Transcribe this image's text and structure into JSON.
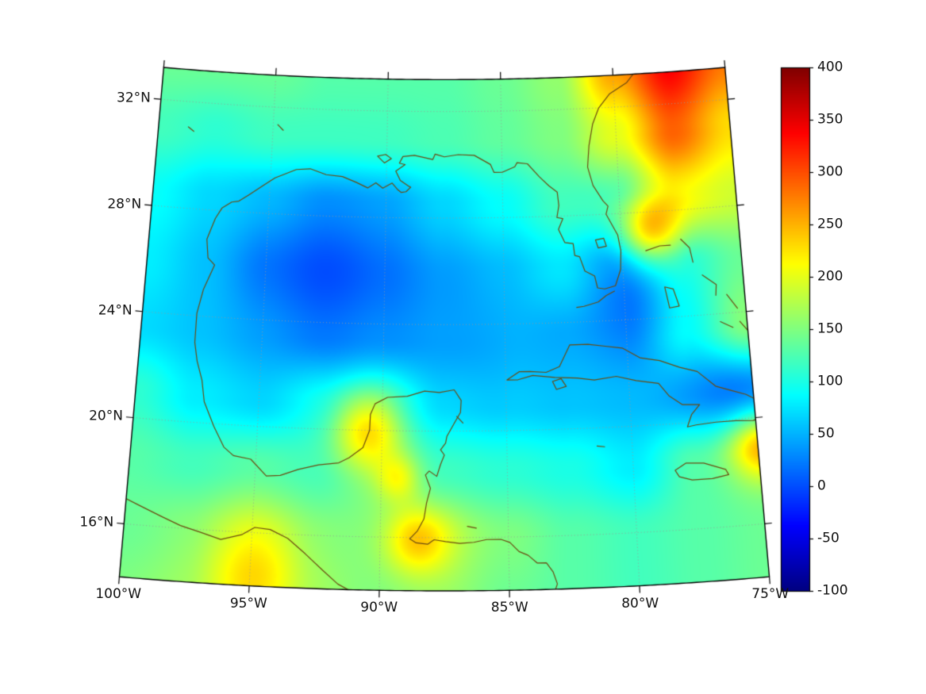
{
  "axes": {
    "lat_labels": [
      "32°N",
      "28°N",
      "24°N",
      "20°N",
      "16°N"
    ],
    "lat_values": [
      32,
      28,
      24,
      20,
      16
    ],
    "lon_labels": [
      "100°W",
      "95°W",
      "90°W",
      "85°W",
      "80°W",
      "75°W"
    ],
    "lon_values": [
      -100,
      -95,
      -90,
      -85,
      -80,
      -75
    ]
  },
  "colorbar": {
    "min": -100,
    "max": 400,
    "colormap": "jet",
    "tick_labels": [
      "400",
      "350",
      "300",
      "250",
      "200",
      "150",
      "100",
      "50",
      "0",
      "-50",
      "-100"
    ],
    "tick_values": [
      400,
      350,
      300,
      250,
      200,
      150,
      100,
      50,
      0,
      -50,
      -100
    ]
  },
  "chart_data": {
    "type": "heatmap",
    "description": "Geographic scalar field over the Gulf of Mexico and Caribbean on a conic map projection with jet colormap, range -100 to 400",
    "projection": {
      "kind": "equidistant-conic",
      "lon0": -87.5,
      "ref_lat": 24,
      "std_parallels": [
        17,
        30
      ],
      "extent_lon": [
        -100,
        -75
      ],
      "extent_lat": [
        14,
        33.2
      ]
    },
    "graticule": {
      "lats": [
        16,
        20,
        24,
        28,
        32
      ],
      "lons": [
        -95,
        -90,
        -85,
        -80
      ]
    },
    "colors": {
      "coastline": "#6b4a10",
      "graticule": "#999999",
      "boundary": "#000000",
      "background": "#ffffff"
    },
    "grid": {
      "lons": [
        -100,
        -97.5,
        -95,
        -92.5,
        -90,
        -87.5,
        -85,
        -82.5,
        -80,
        -77.5,
        -75
      ],
      "lats": [
        13.5,
        16,
        18.5,
        21,
        23.5,
        26,
        28.5,
        31,
        33.5
      ],
      "values": [
        [
          150,
          160,
          190,
          160,
          150,
          160,
          140,
          130,
          120,
          130,
          140
        ],
        [
          140,
          150,
          170,
          150,
          150,
          170,
          150,
          130,
          120,
          130,
          140
        ],
        [
          130,
          120,
          130,
          120,
          150,
          120,
          110,
          100,
          80,
          130,
          150
        ],
        [
          110,
          80,
          70,
          95,
          110,
          80,
          70,
          60,
          55,
          50,
          45
        ],
        [
          70,
          60,
          50,
          40,
          50,
          60,
          60,
          50,
          40,
          100,
          160
        ],
        [
          80,
          60,
          35,
          25,
          35,
          50,
          60,
          80,
          50,
          110,
          140
        ],
        [
          90,
          70,
          60,
          45,
          50,
          70,
          90,
          120,
          120,
          210,
          190
        ],
        [
          120,
          110,
          120,
          120,
          120,
          125,
          135,
          150,
          200,
          290,
          230
        ],
        [
          140,
          140,
          140,
          130,
          130,
          130,
          140,
          160,
          260,
          340,
          280
        ]
      ]
    },
    "blobs": [
      [
        -78.9,
        27.2,
        130,
        0.9
      ],
      [
        -90.6,
        20.1,
        110,
        1.0
      ],
      [
        -88.6,
        15.9,
        80,
        0.9
      ],
      [
        -74.8,
        19.0,
        110,
        0.9
      ],
      [
        -92.5,
        25.6,
        -25,
        2.5
      ],
      [
        -79.3,
        25.4,
        -30,
        1.6
      ],
      [
        -87.0,
        23.0,
        -18,
        2.2
      ],
      [
        -75.9,
        21.4,
        -25,
        1.4
      ],
      [
        -94.8,
        14.8,
        50,
        1.4
      ],
      [
        -89.3,
        18.2,
        60,
        0.6
      ]
    ],
    "coastlines": [
      {
        "name": "mainland-gulf-atlantic",
        "pts": [
          -78.3,
          33.9,
          -78.9,
          33.4,
          -79.4,
          32.9,
          -80.2,
          32.5,
          -80.7,
          32.0,
          -81.0,
          31.4,
          -81.2,
          30.6,
          -81.3,
          29.8,
          -81.1,
          29.1,
          -80.7,
          28.5,
          -80.5,
          28.3,
          -80.6,
          28.0,
          -80.15,
          27.2,
          -80.05,
          26.6,
          -80.1,
          25.9,
          -80.35,
          25.3,
          -80.8,
          25.2,
          -81.1,
          25.25,
          -81.2,
          25.7,
          -81.6,
          25.9,
          -81.8,
          26.45,
          -82.0,
          26.5,
          -82.05,
          26.95,
          -82.4,
          27.0,
          -82.65,
          27.5,
          -82.45,
          27.9,
          -82.7,
          27.95,
          -82.6,
          28.4,
          -82.65,
          28.9,
          -83.0,
          29.15,
          -83.4,
          29.5,
          -83.9,
          30.0,
          -84.35,
          30.05,
          -84.45,
          29.9,
          -85.0,
          29.7,
          -85.35,
          29.7,
          -85.5,
          30.0,
          -86.2,
          30.35,
          -86.9,
          30.38,
          -87.5,
          30.3,
          -87.9,
          30.4,
          -88.0,
          30.2,
          -88.8,
          30.35,
          -89.3,
          30.3,
          -89.45,
          30.05,
          -89.2,
          30.0,
          -89.6,
          29.75,
          -89.4,
          29.4,
          -89.05,
          29.2,
          -88.95,
          29.15,
          -89.15,
          28.98,
          -89.35,
          28.95,
          -89.5,
          29.05,
          -89.75,
          29.3,
          -90.15,
          29.1,
          -90.45,
          29.3,
          -90.8,
          29.1,
          -91.3,
          29.3,
          -91.9,
          29.5,
          -92.6,
          29.55,
          -93.3,
          29.75,
          -93.9,
          29.7,
          -94.8,
          29.35,
          -95.2,
          29.1,
          -95.9,
          28.65,
          -96.3,
          28.4,
          -96.6,
          28.35,
          -97.0,
          28.1,
          -97.25,
          27.7,
          -97.4,
          27.3,
          -97.55,
          26.9,
          -97.45,
          26.2,
          -97.15,
          25.95,
          -97.55,
          25.0,
          -97.75,
          24.1,
          -97.75,
          23.0,
          -97.6,
          22.3,
          -97.35,
          21.6,
          -97.2,
          20.8,
          -96.75,
          19.9,
          -96.3,
          19.15,
          -95.9,
          18.85,
          -95.2,
          18.75,
          -94.55,
          18.15,
          -94.0,
          18.2,
          -93.3,
          18.45,
          -92.5,
          18.65,
          -91.7,
          18.75,
          -91.3,
          18.95,
          -90.75,
          19.35,
          -90.5,
          20.0,
          -90.48,
          20.6,
          -90.3,
          21.0,
          -89.8,
          21.25,
          -89.0,
          21.3,
          -88.3,
          21.5,
          -87.7,
          21.45,
          -87.1,
          21.55,
          -86.82,
          21.15,
          -86.85,
          20.7,
          -87.1,
          20.3,
          -87.4,
          19.8,
          -87.45,
          19.55,
          -87.65,
          19.3,
          -87.5,
          19.1,
          -87.65,
          18.75,
          -87.8,
          18.3,
          -88.1,
          18.5,
          -88.25,
          18.35,
          -88.05,
          17.85,
          -88.2,
          17.3,
          -88.3,
          16.7,
          -88.55,
          16.25,
          -88.85,
          15.95,
          -88.6,
          15.8,
          -88.15,
          15.75,
          -87.9,
          15.92,
          -87.45,
          15.85,
          -86.9,
          15.78,
          -86.35,
          15.82,
          -85.85,
          15.92,
          -85.3,
          15.92,
          -84.95,
          15.8,
          -84.6,
          15.45,
          -84.25,
          15.3,
          -83.9,
          15.0,
          -83.55,
          15.0,
          -83.3,
          14.65,
          -83.15,
          14.2,
          -83.3,
          13.8
        ]
      },
      {
        "name": "pacific-coast",
        "pts": [
          -100.4,
          17.1,
          -99.5,
          16.75,
          -98.6,
          16.4,
          -97.8,
          16.1,
          -97.0,
          15.9,
          -96.2,
          15.68,
          -95.4,
          15.9,
          -94.9,
          16.2,
          -94.3,
          16.15,
          -93.6,
          15.85,
          -92.9,
          15.3,
          -92.2,
          14.7,
          -91.6,
          14.2,
          -90.9,
          13.85,
          -90.3,
          13.7
        ]
      },
      {
        "name": "cuba",
        "pts": [
          -84.95,
          21.9,
          -84.45,
          22.2,
          -84.0,
          22.2,
          -83.35,
          22.15,
          -82.8,
          22.35,
          -82.35,
          23.15,
          -81.6,
          23.15,
          -80.9,
          23.05,
          -80.2,
          22.95,
          -79.5,
          22.55,
          -78.7,
          22.4,
          -77.9,
          22.1,
          -77.2,
          21.9,
          -76.5,
          21.3,
          -75.9,
          21.1,
          -75.3,
          20.9,
          -74.6,
          20.5,
          -74.15,
          20.2,
          -74.5,
          20.05,
          -75.1,
          19.9,
          -75.8,
          19.95,
          -76.6,
          19.95,
          -77.4,
          19.9,
          -77.75,
          19.85,
          -77.55,
          20.3,
          -77.2,
          20.65,
          -77.9,
          20.7,
          -78.4,
          21.05,
          -78.8,
          21.55,
          -79.7,
          21.7,
          -80.5,
          21.9,
          -81.4,
          21.8,
          -82.1,
          21.9,
          -83.0,
          21.95,
          -83.9,
          22.05,
          -84.5,
          21.9,
          -84.95,
          21.9
        ]
      },
      {
        "name": "isla-juventud",
        "pts": [
          -83.1,
          21.8,
          -82.75,
          21.9,
          -82.55,
          21.6,
          -82.95,
          21.5,
          -83.1,
          21.8
        ]
      },
      {
        "name": "jamaica",
        "pts": [
          -78.35,
          18.25,
          -77.9,
          18.5,
          -77.2,
          18.45,
          -76.35,
          18.15,
          -76.25,
          17.95,
          -76.9,
          17.85,
          -77.7,
          17.85,
          -78.2,
          18.0,
          -78.35,
          18.25
        ]
      },
      {
        "name": "florida-keys",
        "pts": [
          -80.4,
          25.1,
          -80.75,
          24.95,
          -81.1,
          24.72,
          -81.7,
          24.58,
          -82.0,
          24.55
        ]
      },
      {
        "name": "grand-bahama",
        "pts": [
          -79.0,
          26.55,
          -78.4,
          26.7,
          -77.95,
          26.7
        ]
      },
      {
        "name": "abaco",
        "pts": [
          -77.5,
          26.9,
          -77.15,
          26.55,
          -77.05,
          26.0
        ]
      },
      {
        "name": "andros",
        "pts": [
          -78.3,
          25.15,
          -77.95,
          25.05,
          -77.75,
          24.4,
          -78.15,
          24.35,
          -78.3,
          25.15
        ]
      },
      {
        "name": "eleuthera",
        "pts": [
          -76.7,
          25.5,
          -76.15,
          25.1,
          -76.2,
          24.7
        ]
      },
      {
        "name": "exuma",
        "pts": [
          -76.1,
          23.7,
          -75.6,
          23.45
        ]
      },
      {
        "name": "long-island-bahamas",
        "pts": [
          -75.3,
          23.65,
          -74.85,
          23.1
        ]
      },
      {
        "name": "cat-island",
        "pts": [
          -75.75,
          24.7,
          -75.35,
          24.15
        ]
      },
      {
        "name": "grand-cayman",
        "pts": [
          -81.4,
          19.32,
          -81.1,
          19.28
        ]
      },
      {
        "name": "cozumel",
        "pts": [
          -87.0,
          20.55,
          -86.75,
          20.3
        ]
      },
      {
        "name": "roatan",
        "pts": [
          -86.6,
          16.42,
          -86.25,
          16.35
        ]
      },
      {
        "name": "lake-okeechobee",
        "pts": [
          -81.1,
          27.05,
          -80.75,
          27.1,
          -80.65,
          26.8,
          -81.0,
          26.75,
          -81.1,
          27.05
        ]
      },
      {
        "name": "lake-pontchartrain",
        "pts": [
          -90.4,
          30.3,
          -90.05,
          30.37,
          -89.8,
          30.22,
          -90.1,
          30.05,
          -90.4,
          30.3
        ]
      },
      {
        "name": "texas-lake-1",
        "pts": [
          -98.7,
          31.05,
          -98.45,
          30.9
        ]
      },
      {
        "name": "texas-lake-2",
        "pts": [
          -94.8,
          31.35,
          -94.55,
          31.15
        ]
      }
    ]
  }
}
